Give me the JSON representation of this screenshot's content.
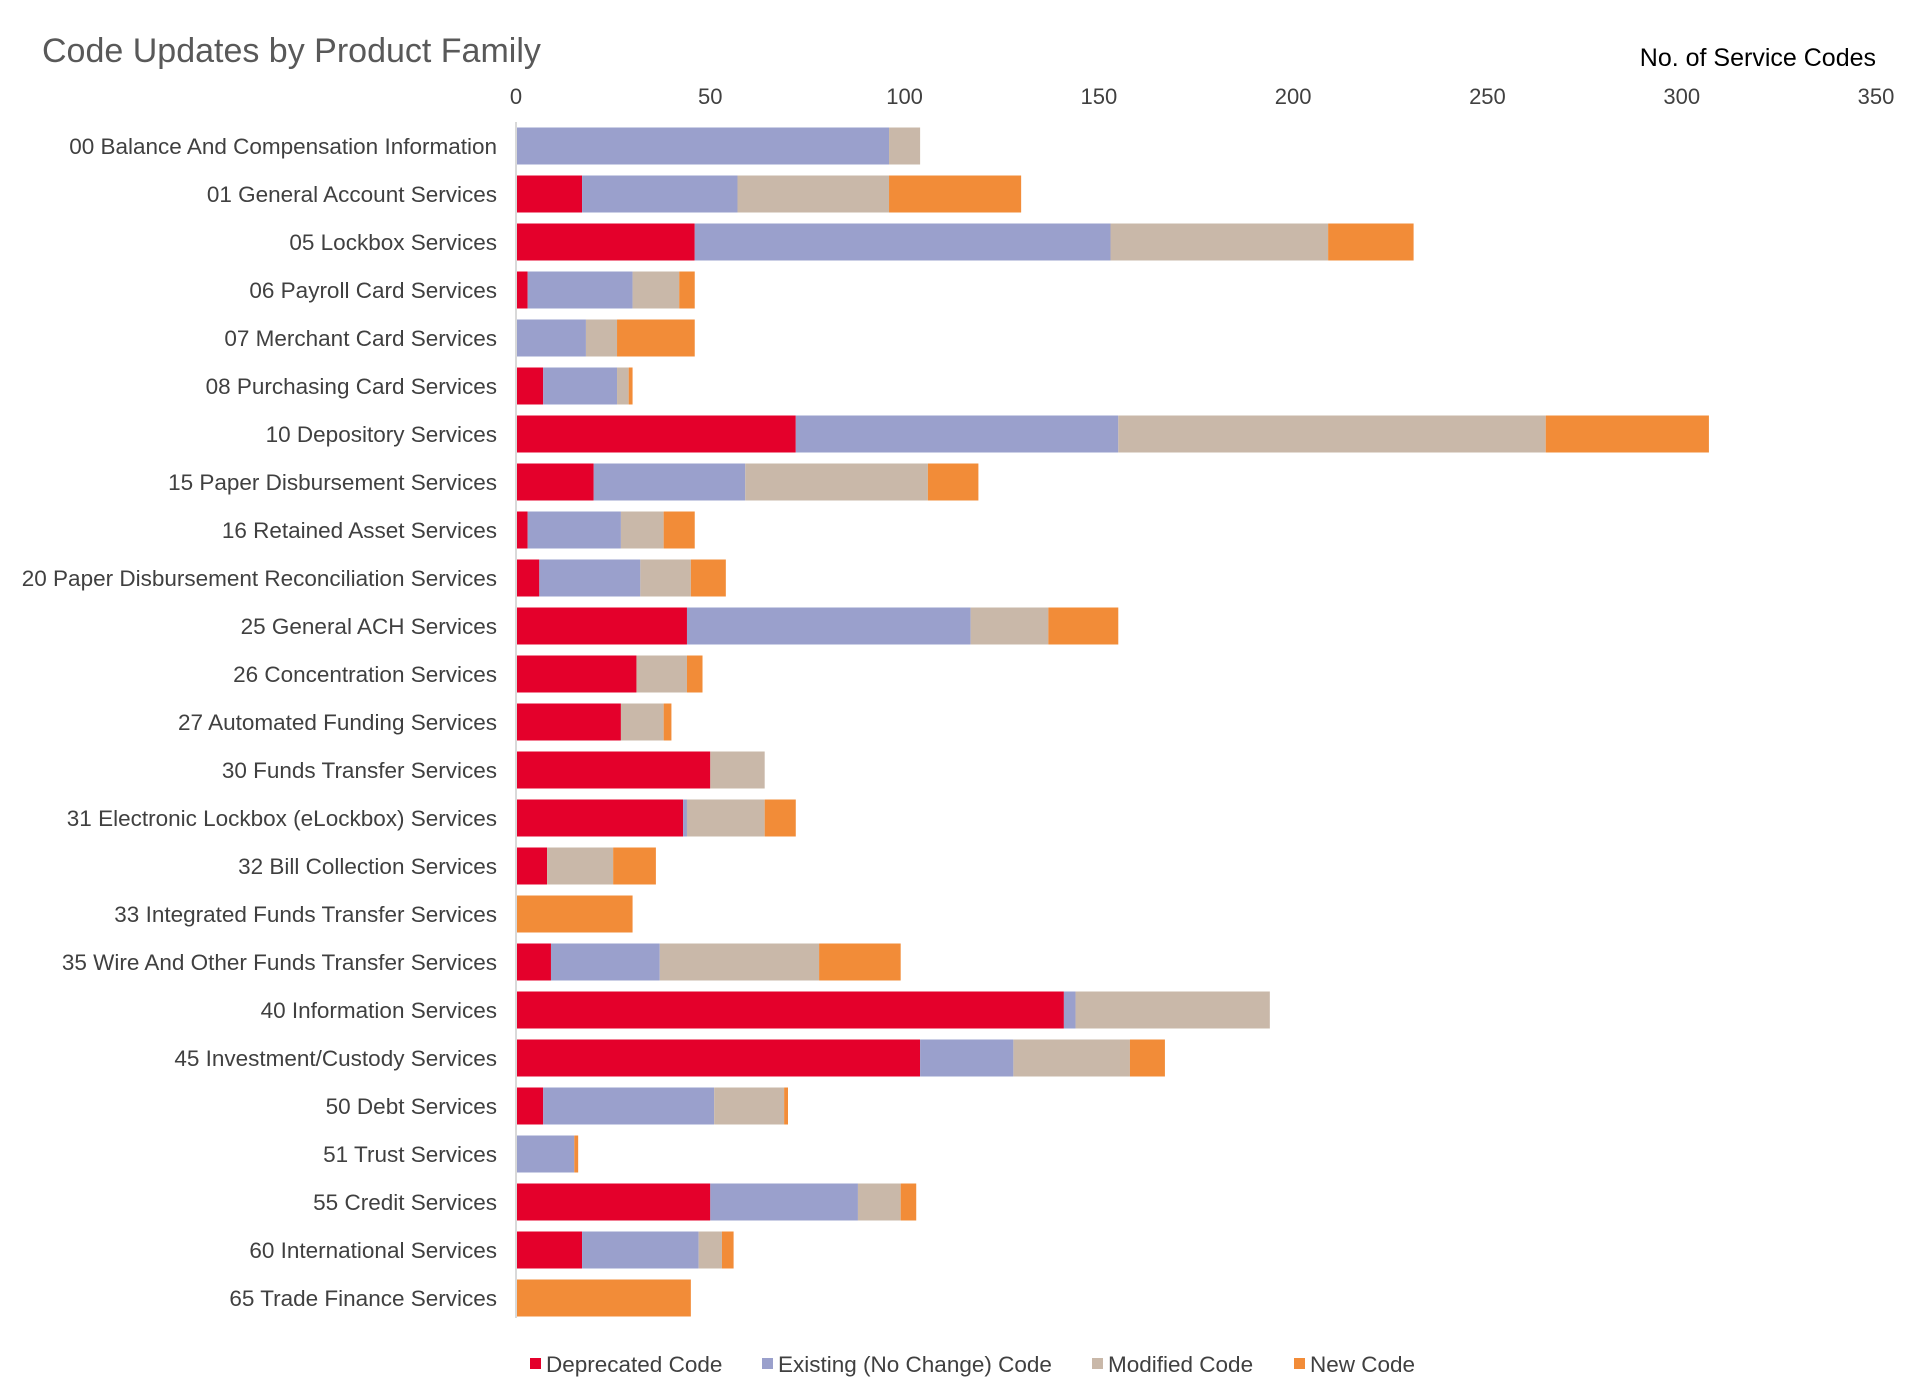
{
  "chart_data": {
    "type": "bar",
    "orientation": "horizontal",
    "stacked": true,
    "title": "Code Updates by Product Family",
    "xlabel": "No. of Service Codes",
    "ylabel": "",
    "xlim": [
      0,
      350
    ],
    "x_ticks": [
      "0",
      "50",
      "100",
      "150",
      "200",
      "250",
      "300",
      "350"
    ],
    "x_axis_position": "top",
    "grid": false,
    "legend_position": "bottom",
    "categories": [
      "00 Balance And Compensation Information",
      "01 General Account Services",
      "05 Lockbox Services",
      "06 Payroll Card Services",
      "07 Merchant Card Services",
      "08 Purchasing Card Services",
      "10 Depository Services",
      "15 Paper Disbursement Services",
      "16 Retained Asset Services",
      "20 Paper Disbursement Reconciliation Services",
      "25 General ACH Services",
      "26 Concentration Services",
      "27 Automated Funding Services",
      "30 Funds Transfer Services",
      "31 Electronic Lockbox (eLockbox) Services",
      "32 Bill Collection Services",
      "33 Integrated Funds Transfer Services",
      "35 Wire And Other Funds Transfer Services",
      "40 Information Services",
      "45 Investment/Custody Services",
      "50 Debt Services",
      "51 Trust Services",
      "55 Credit Services",
      "60 International Services",
      "65 Trade Finance Services"
    ],
    "series": [
      {
        "name": "Deprecated Code",
        "color": "#e4002b",
        "values": [
          0,
          17,
          46,
          3,
          0,
          7,
          72,
          20,
          3,
          6,
          44,
          31,
          27,
          50,
          43,
          8,
          0,
          9,
          141,
          104,
          7,
          0,
          50,
          17,
          0
        ]
      },
      {
        "name": "Existing (No Change) Code",
        "color": "#9aa0cc",
        "values": [
          96,
          40,
          107,
          27,
          18,
          19,
          83,
          39,
          24,
          26,
          73,
          0,
          0,
          0,
          1,
          0,
          0,
          28,
          3,
          24,
          44,
          15,
          38,
          30,
          0
        ]
      },
      {
        "name": "Modified Code",
        "color": "#c9b8a9",
        "values": [
          8,
          39,
          56,
          12,
          8,
          3,
          110,
          47,
          11,
          13,
          20,
          13,
          11,
          14,
          20,
          17,
          0,
          41,
          50,
          30,
          18,
          0,
          11,
          6,
          0
        ]
      },
      {
        "name": "New Code",
        "color": "#f28c38",
        "values": [
          0,
          34,
          22,
          4,
          20,
          1,
          42,
          13,
          8,
          9,
          18,
          4,
          2,
          0,
          8,
          11,
          30,
          21,
          0,
          9,
          1,
          1,
          4,
          3,
          45
        ]
      }
    ]
  }
}
